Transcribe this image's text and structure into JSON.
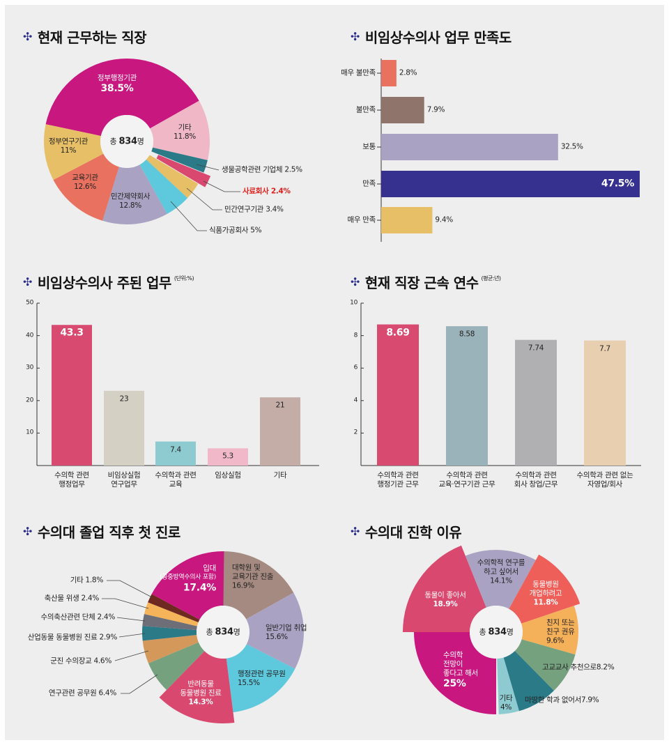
{
  "titles": [
    {
      "text": "현재 근무하는 직장",
      "unit": ""
    },
    {
      "text": "비임상수의사 업무 만족도",
      "unit": ""
    },
    {
      "text": "비임상수의사 주된 업무",
      "unit": "(단위:%)"
    },
    {
      "text": "현재 직장 근속 연수",
      "unit": "(평균:년)"
    },
    {
      "text": "수의대 졸업 직후 첫 진로",
      "unit": ""
    },
    {
      "text": "수의대 진학 이유",
      "unit": ""
    }
  ],
  "title_icon": "four-diamond-ornament-icon",
  "chart_data": [
    {
      "type": "pie",
      "title": "현재 근무하는 직장",
      "center_label": {
        "prefix": "총 ",
        "number": "834",
        "suffix": "명"
      },
      "unit": "%",
      "slices": [
        {
          "label": "정부행정기관",
          "value": 38.5,
          "color": "#c8177e"
        },
        {
          "label": "기타",
          "value": 11.8,
          "color": "#f0b8c6"
        },
        {
          "label": "생물공학관련 기업체",
          "value": 2.5,
          "color": "#2a7a87"
        },
        {
          "label": "사료회사",
          "value": 2.4,
          "color": "#d9486f",
          "highlighted": true
        },
        {
          "label": "민간연구기관",
          "value": 3.4,
          "color": "#e6bf66"
        },
        {
          "label": "식품가공회사",
          "value": 5,
          "color": "#5ec8dc"
        },
        {
          "label": "민간제약회사",
          "value": 12.8,
          "color": "#aaa2c2"
        },
        {
          "label": "교육기관",
          "value": 12.6,
          "color": "#e8715f"
        },
        {
          "label": "정부연구기관",
          "value": 11,
          "color": "#e6bf66"
        }
      ]
    },
    {
      "type": "bar",
      "orientation": "horizontal",
      "title": "비임상수의사 업무 만족도",
      "unit": "%",
      "categories": [
        "매우 불만족",
        "불만족",
        "보통",
        "만족",
        "매우 만족"
      ],
      "values": [
        2.8,
        7.9,
        32.5,
        47.5,
        9.4
      ],
      "colors": [
        "#e8715f",
        "#8f746b",
        "#aaa2c2",
        "#36308f",
        "#e6bf66"
      ]
    },
    {
      "type": "bar",
      "title": "비임상수의사 주된 업무",
      "unit_note": "(단위:%)",
      "categories": [
        "수의학 관련\n행정업무",
        "비임상실험\n연구업무",
        "수의학과 관련\n교육",
        "임상실험",
        "기타"
      ],
      "values": [
        43.3,
        23,
        7.4,
        5.3,
        21
      ],
      "colors": [
        "#d94a70",
        "#d4d0c4",
        "#8ecbd1",
        "#f0b8c8",
        "#c3ada6"
      ],
      "ylim": [
        0,
        50
      ],
      "yticks": [
        10,
        20,
        30,
        40,
        50
      ]
    },
    {
      "type": "bar",
      "title": "현재 직장 근속 연수",
      "unit_note": "(평균:년)",
      "categories": [
        "수의학과 관련\n행정기관 근무",
        "수의학과 관련\n교육·연구기관 근무",
        "수의학과 관련\n회사 창업/근무",
        "수의학과 관련 없는\n자영업/회사"
      ],
      "values": [
        8.69,
        8.58,
        7.74,
        7.7
      ],
      "colors": [
        "#d94a70",
        "#9ab2b9",
        "#b0b0b3",
        "#e8cfb0"
      ],
      "ylim": [
        0,
        10
      ],
      "yticks": [
        2,
        4,
        6,
        8,
        10
      ]
    },
    {
      "type": "pie",
      "title": "수의대 졸업 직후 첫 진로",
      "center_label": {
        "prefix": "총 ",
        "number": "834",
        "suffix": "명"
      },
      "unit": "%",
      "slices": [
        {
          "label": "대학원 및\n교육기관 진출",
          "value": 16.9,
          "color": "#a48a80"
        },
        {
          "label": "일반기업 취업",
          "value": 15.6,
          "color": "#aaa2c2"
        },
        {
          "label": "행정관련 공무원",
          "value": 15.5,
          "color": "#5ec8dc"
        },
        {
          "label": "반려동물\n동물병원 진료",
          "value": 14.3,
          "color": "#d9486f"
        },
        {
          "label": "연구관련 공무원",
          "value": 6.4,
          "color": "#76a17f"
        },
        {
          "label": "군진 수의장교",
          "value": 4.6,
          "color": "#d3985a"
        },
        {
          "label": "산업동물 동물병원 진료",
          "value": 2.9,
          "color": "#2a7a87"
        },
        {
          "label": "수의축산관련 단체",
          "value": 2.4,
          "color": "#6e6e78"
        },
        {
          "label": "축산물 위생",
          "value": 2.4,
          "color": "#f5b45a"
        },
        {
          "label": "기타",
          "value": 1.8,
          "color": "#6e2a20"
        },
        {
          "label": "입대",
          "note": "(공중방역수의사 포함)",
          "value": 17.4,
          "color": "#c8177e"
        }
      ]
    },
    {
      "type": "pie",
      "title": "수의대 진학 이유",
      "center_label": {
        "prefix": "총 ",
        "number": "834",
        "suffix": "명"
      },
      "unit": "%",
      "slices": [
        {
          "label": "수의학\n전망이\n좋다고 해서",
          "value": 25,
          "color": "#c8177e"
        },
        {
          "label": "동물이 좋아서",
          "value": 18.9,
          "color": "#d9486f"
        },
        {
          "label": "수의학적 연구를\n하고 싶어서",
          "value": 14.1,
          "color": "#aaa2c2"
        },
        {
          "label": "동물병원\n개업하려고",
          "value": 11.8,
          "color": "#ef5f5a"
        },
        {
          "label": "친지 또는\n친구 권유",
          "value": 9.6,
          "color": "#f5b05a"
        },
        {
          "label": "고교교사 추천으로",
          "value": 8.2,
          "color": "#76a17f"
        },
        {
          "label": "마땅한 학과 없어서",
          "value": 7.9,
          "color": "#2a7a87"
        },
        {
          "label": "기타",
          "value": 4,
          "color": "#8ecbd1"
        }
      ]
    }
  ]
}
